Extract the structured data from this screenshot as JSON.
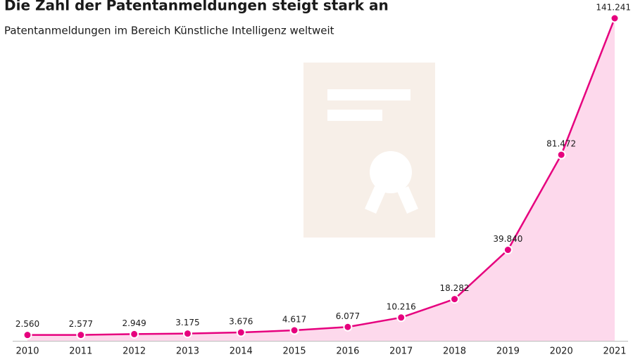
{
  "chart_data": {
    "type": "line",
    "title": "Die Zahl der Patentanmeldungen steigt stark an",
    "subtitle": "Patentanmeldungen im Bereich Künstliche Intelligenz weltweit",
    "categories": [
      "2010",
      "2011",
      "2012",
      "2013",
      "2014",
      "2015",
      "2016",
      "2017",
      "2018",
      "2019",
      "2020",
      "2021"
    ],
    "values": [
      2560,
      2577,
      2949,
      3175,
      3676,
      4617,
      6077,
      10216,
      18282,
      39840,
      81472,
      141241
    ],
    "value_labels": [
      "2.560",
      "2.577",
      "2.949",
      "3.175",
      "3.676",
      "4.617",
      "6.077",
      "10.216",
      "18.282",
      "39.840",
      "81.472",
      "141.241"
    ],
    "color": "#e6007e",
    "area_color": "#fdd9ec"
  }
}
